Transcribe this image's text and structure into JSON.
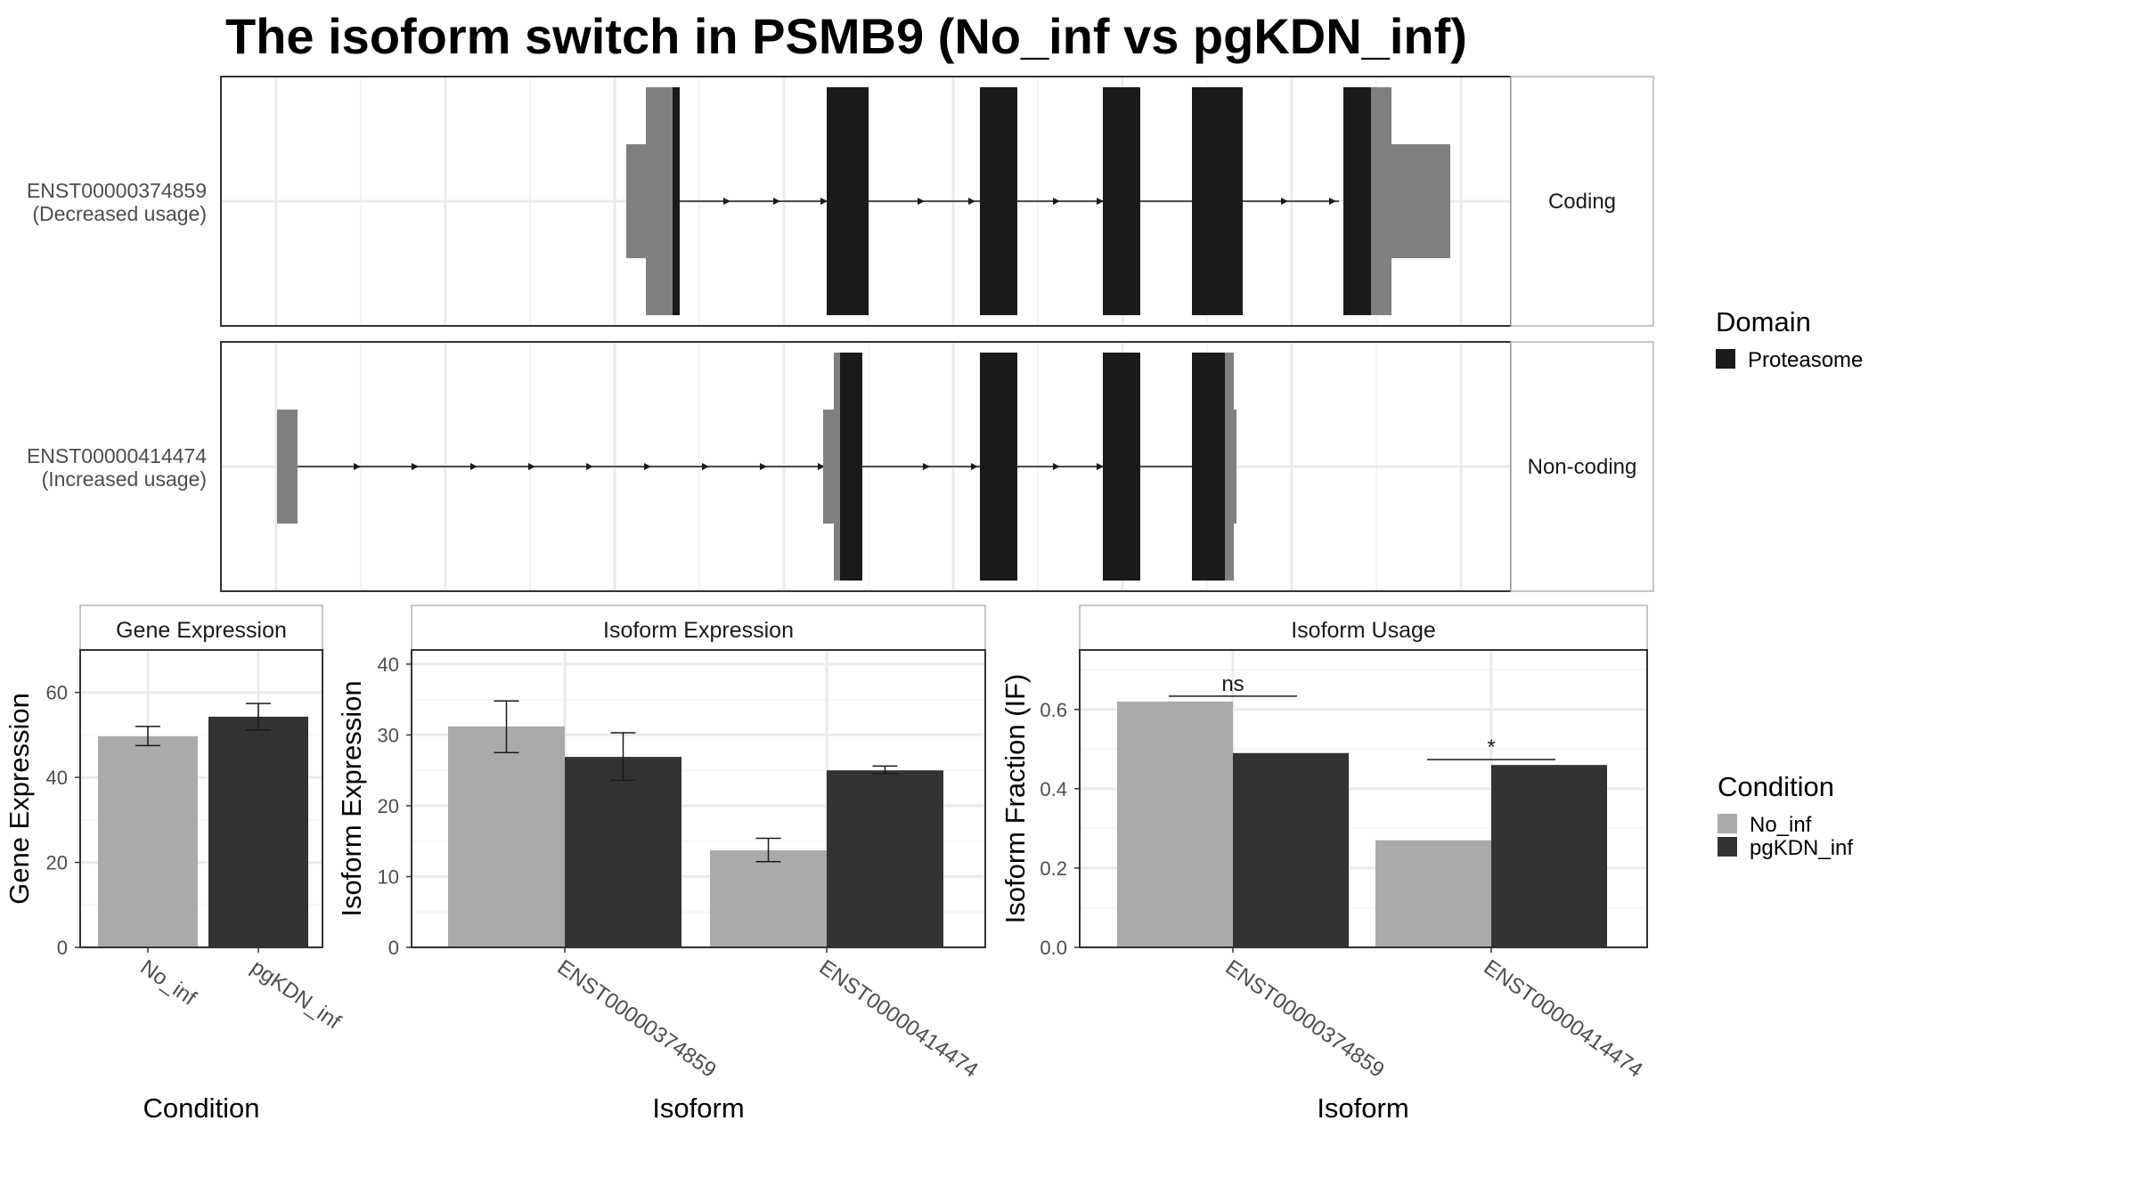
{
  "title": "The isoform switch in PSMB9 (No_inf vs pgKDN_inf)",
  "colors": {
    "exon_utr": "#808080",
    "domain": "#1a1a1a",
    "no_inf": "#aaaaaa",
    "pgkdn_inf": "#333333",
    "grid": "#ebebeb",
    "panel_border": "#333333",
    "strip_border": "#b3b3b3"
  },
  "structure_legend": {
    "title": "Domain",
    "entries": [
      {
        "label": "Proteasome",
        "color": "#1a1a1a"
      }
    ]
  },
  "condition_legend": {
    "title": "Condition",
    "entries": [
      {
        "label": "No_inf",
        "color": "#aaaaaa"
      },
      {
        "label": "pgKDN_inf",
        "color": "#333333"
      }
    ]
  },
  "transcripts": [
    {
      "id": "ENST00000374859",
      "usage": "(Decreased usage)",
      "strip": "Coding"
    },
    {
      "id": "ENST00000414474",
      "usage": "(Increased usage)",
      "strip": "Non-coding"
    }
  ],
  "chart_data": [
    {
      "type": "bar",
      "strip": "Gene Expression",
      "xlabel": "Condition",
      "ylabel": "Gene Expression",
      "categories": [
        "No_inf",
        "pgKDN_inf"
      ],
      "values": [
        49.7,
        54.3
      ],
      "errors": [
        [
          47.5,
          52.0
        ],
        [
          51.2,
          57.4
        ]
      ],
      "ylim": [
        0,
        70
      ],
      "yticks": [
        0,
        20,
        40,
        60
      ],
      "grid": true
    },
    {
      "type": "bar",
      "strip": "Isoform Expression",
      "xlabel": "Isoform",
      "ylabel": "Isoform Expression",
      "categories": [
        "ENST00000374859",
        "ENST00000414474"
      ],
      "series": [
        {
          "name": "No_inf",
          "values": [
            31.2,
            13.7
          ],
          "errors": [
            [
              27.5,
              34.8
            ],
            [
              12.1,
              15.4
            ]
          ]
        },
        {
          "name": "pgKDN_inf",
          "values": [
            26.9,
            25.0
          ],
          "errors": [
            [
              23.6,
              30.3
            ],
            [
              24.5,
              25.6
            ]
          ]
        }
      ],
      "ylim": [
        0,
        42
      ],
      "yticks": [
        0,
        10,
        20,
        30,
        40
      ],
      "grid": true
    },
    {
      "type": "bar",
      "strip": "Isoform Usage",
      "xlabel": "Isoform",
      "ylabel": "Isoform Fraction (IF)",
      "categories": [
        "ENST00000374859",
        "ENST00000414474"
      ],
      "series": [
        {
          "name": "No_inf",
          "values": [
            0.62,
            0.27
          ]
        },
        {
          "name": "pgKDN_inf",
          "values": [
            0.49,
            0.46
          ]
        }
      ],
      "significance": [
        "ns",
        "*"
      ],
      "ylim": [
        0,
        0.75
      ],
      "yticks": [
        0.0,
        0.2,
        0.4,
        0.6
      ],
      "ytick_labels": [
        "0.0",
        "0.2",
        "0.4",
        "0.6"
      ],
      "grid": true
    }
  ]
}
